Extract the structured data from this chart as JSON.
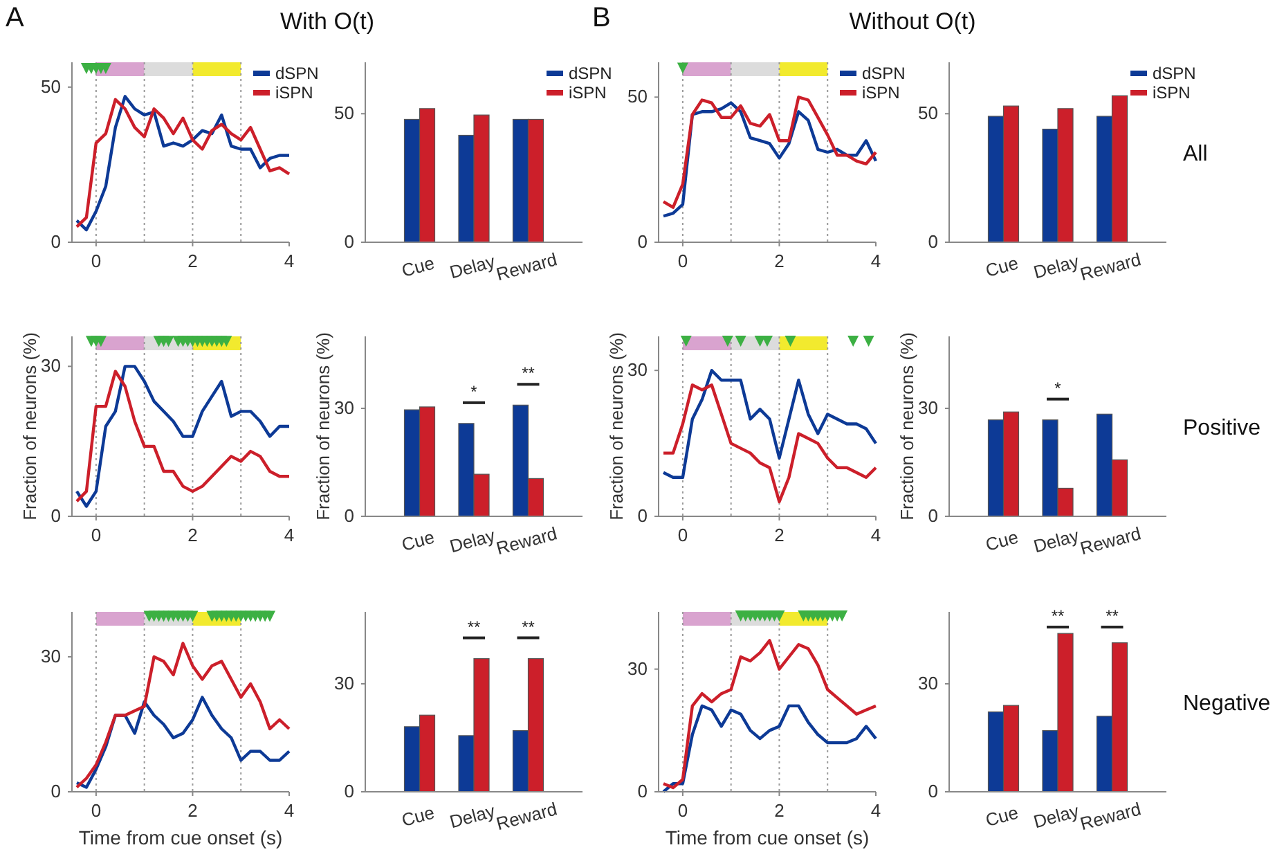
{
  "chart_data": [
    {
      "type": "line",
      "title": "With O(t)",
      "annotations": [
        "A"
      ],
      "x": [
        -0.4,
        -0.2,
        0,
        0.2,
        0.4,
        0.6,
        0.8,
        1.0,
        1.2,
        1.4,
        1.6,
        1.8,
        2.0,
        2.2,
        2.4,
        2.6,
        2.8,
        3.0,
        3.2,
        3.4,
        3.6,
        3.8,
        4.0
      ],
      "xlim": [
        -0.5,
        4
      ],
      "xticks": [
        0,
        2,
        4
      ],
      "ylim": [
        0,
        58
      ],
      "yticks": [
        0,
        50
      ],
      "legend": "top right",
      "bands": [
        {
          "axis": "x",
          "from": 0,
          "to": 1,
          "color": "#d9a3cf"
        },
        {
          "axis": "x",
          "from": 1,
          "to": 2,
          "color": "#dcdcdc"
        },
        {
          "axis": "x",
          "from": 2,
          "to": 3,
          "color": "#f2ea2e"
        }
      ],
      "ref_lines": [
        {
          "axis": "x",
          "value": 0,
          "color": "#9a9a9a",
          "line_style": "dotted"
        },
        {
          "axis": "x",
          "value": 1,
          "color": "#9a9a9a",
          "line_style": "dotted"
        },
        {
          "axis": "x",
          "value": 2,
          "color": "#9a9a9a",
          "line_style": "dotted"
        },
        {
          "axis": "x",
          "value": 3,
          "color": "#9a9a9a",
          "line_style": "dotted"
        }
      ],
      "series": [
        {
          "name": "dSPN",
          "color": "#0d3a96",
          "values": [
            7,
            4,
            10,
            18,
            37,
            47,
            43,
            41,
            42,
            31,
            32,
            31,
            33,
            36,
            35,
            41,
            31,
            30,
            30,
            24,
            27,
            28,
            28
          ]
        },
        {
          "name": "iSPN",
          "color": "#cc1f2a",
          "values": [
            5,
            8,
            32,
            35,
            46,
            43,
            37,
            34,
            43,
            40,
            35,
            40,
            33,
            30,
            36,
            38,
            35,
            33,
            37,
            30,
            23,
            24,
            22
          ]
        },
        {
          "type": "scatter",
          "marker": "triangle",
          "color": "#3cb043",
          "x": [
            -0.2,
            -0.1,
            0,
            0.1,
            0.2
          ],
          "values": [
            56,
            56,
            56,
            56,
            56
          ]
        }
      ]
    },
    {
      "type": "bar",
      "categories": [
        "Cue",
        "Delay",
        "Reward"
      ],
      "ylim": [
        0,
        70
      ],
      "yticks": [
        0,
        50
      ],
      "legend": "top right",
      "series": [
        {
          "name": "dSPN",
          "color": "#0d3a96",
          "values": [
            47.8,
            41.6,
            47.8
          ]
        },
        {
          "name": "iSPN",
          "color": "#cc1f2a",
          "values": [
            52,
            49.5,
            47.8
          ]
        }
      ]
    },
    {
      "type": "line",
      "title": "Without O(t)",
      "annotations": [
        "B"
      ],
      "x": [
        -0.4,
        -0.2,
        0,
        0.2,
        0.4,
        0.6,
        0.8,
        1.0,
        1.2,
        1.4,
        1.6,
        1.8,
        2.0,
        2.2,
        2.4,
        2.6,
        2.8,
        3.0,
        3.2,
        3.4,
        3.6,
        3.8,
        4.0
      ],
      "xlim": [
        -0.5,
        4
      ],
      "xticks": [
        0,
        2,
        4
      ],
      "ylim": [
        0,
        62
      ],
      "yticks": [
        0,
        50
      ],
      "legend": "top right",
      "bands": [
        {
          "axis": "x",
          "from": 0,
          "to": 1,
          "color": "#d9a3cf"
        },
        {
          "axis": "x",
          "from": 1,
          "to": 2,
          "color": "#dcdcdc"
        },
        {
          "axis": "x",
          "from": 2,
          "to": 3,
          "color": "#f2ea2e"
        }
      ],
      "ref_lines": [
        {
          "axis": "x",
          "value": 0,
          "color": "#9a9a9a",
          "line_style": "dotted"
        },
        {
          "axis": "x",
          "value": 1,
          "color": "#9a9a9a",
          "line_style": "dotted"
        },
        {
          "axis": "x",
          "value": 2,
          "color": "#9a9a9a",
          "line_style": "dotted"
        },
        {
          "axis": "x",
          "value": 3,
          "color": "#9a9a9a",
          "line_style": "dotted"
        }
      ],
      "series": [
        {
          "name": "dSPN",
          "color": "#0d3a96",
          "values": [
            9,
            10,
            13,
            44,
            45,
            45,
            46,
            48,
            45,
            36,
            35,
            34,
            29,
            34,
            45,
            42,
            32,
            31,
            32,
            30,
            30,
            35,
            28
          ]
        },
        {
          "name": "iSPN",
          "color": "#cc1f2a",
          "values": [
            14,
            12,
            20,
            44,
            49,
            48,
            43,
            43,
            47,
            41,
            40,
            44,
            35,
            35,
            50,
            49,
            43,
            37,
            30,
            30,
            28,
            27,
            31
          ]
        },
        {
          "type": "scatter",
          "marker": "triangle",
          "color": "#3cb043",
          "x": [
            0
          ],
          "values": [
            60
          ]
        }
      ]
    },
    {
      "type": "bar",
      "categories": [
        "Cue",
        "Delay",
        "Reward"
      ],
      "ylim": [
        0,
        70
      ],
      "yticks": [
        0,
        50
      ],
      "legend": "top right",
      "annotations": [
        "All"
      ],
      "series": [
        {
          "name": "dSPN",
          "color": "#0d3a96",
          "values": [
            49,
            44,
            49
          ]
        },
        {
          "name": "iSPN",
          "color": "#cc1f2a",
          "values": [
            53,
            52,
            57
          ]
        }
      ]
    },
    {
      "type": "line",
      "ylabel": "Fraction of neurons (%)",
      "x": [
        -0.4,
        -0.2,
        0,
        0.2,
        0.4,
        0.6,
        0.8,
        1.0,
        1.2,
        1.4,
        1.6,
        1.8,
        2.0,
        2.2,
        2.4,
        2.6,
        2.8,
        3.0,
        3.2,
        3.4,
        3.6,
        3.8,
        4.0
      ],
      "xlim": [
        -0.5,
        4
      ],
      "xticks": [
        0,
        2,
        4
      ],
      "ylim": [
        0,
        36
      ],
      "yticks": [
        0,
        30
      ],
      "bands": [
        {
          "axis": "x",
          "from": 0,
          "to": 1,
          "color": "#d9a3cf"
        },
        {
          "axis": "x",
          "from": 1,
          "to": 2,
          "color": "#dcdcdc"
        },
        {
          "axis": "x",
          "from": 2,
          "to": 3,
          "color": "#f2ea2e"
        }
      ],
      "ref_lines": [
        {
          "axis": "x",
          "value": 0,
          "color": "#9a9a9a",
          "line_style": "dotted"
        },
        {
          "axis": "x",
          "value": 1,
          "color": "#9a9a9a",
          "line_style": "dotted"
        },
        {
          "axis": "x",
          "value": 2,
          "color": "#9a9a9a",
          "line_style": "dotted"
        },
        {
          "axis": "x",
          "value": 3,
          "color": "#9a9a9a",
          "line_style": "dotted"
        }
      ],
      "series": [
        {
          "color": "#0d3a96",
          "values": [
            5,
            2,
            5,
            18,
            21,
            30,
            30,
            27,
            23,
            21,
            19,
            16,
            16,
            21,
            24,
            27,
            20,
            21,
            21,
            19,
            16,
            18,
            18
          ]
        },
        {
          "color": "#cc1f2a",
          "values": [
            3,
            5,
            22,
            22,
            29,
            26,
            19,
            14,
            14,
            9,
            9,
            6,
            5,
            6,
            8,
            10,
            12,
            11,
            13,
            12,
            9,
            8,
            8
          ]
        },
        {
          "type": "scatter",
          "marker": "triangle",
          "color": "#3cb043",
          "x": [
            -0.1,
            0,
            0.1,
            1.3,
            1.4,
            1.5,
            1.7,
            1.8,
            1.9,
            2.0,
            2.1,
            2.2,
            2.3,
            2.4,
            2.5,
            2.6,
            2.7
          ],
          "values": [
            35,
            35,
            35,
            35,
            35,
            35,
            35,
            35,
            35,
            35,
            35,
            35,
            35,
            35,
            35,
            35,
            35
          ]
        }
      ]
    },
    {
      "type": "bar",
      "ylabel": "Fraction of neurons (%)",
      "categories": [
        "Cue",
        "Delay",
        "Reward"
      ],
      "ylim": [
        0,
        50
      ],
      "yticks": [
        0,
        30
      ],
      "annotations": [
        "*",
        "**"
      ],
      "series": [
        {
          "color": "#0d3a96",
          "values": [
            29.6,
            25.8,
            30.9
          ]
        },
        {
          "color": "#cc1f2a",
          "values": [
            30.4,
            11.7,
            10.5
          ]
        }
      ]
    },
    {
      "type": "line",
      "ylabel": "Fraction of neurons (%)",
      "x": [
        -0.4,
        -0.2,
        0,
        0.2,
        0.4,
        0.6,
        0.8,
        1.0,
        1.2,
        1.4,
        1.6,
        1.8,
        2.0,
        2.2,
        2.4,
        2.6,
        2.8,
        3.0,
        3.2,
        3.4,
        3.6,
        3.8,
        4.0
      ],
      "xlim": [
        -0.5,
        4
      ],
      "xticks": [
        0,
        2,
        4
      ],
      "ylim": [
        0,
        37
      ],
      "yticks": [
        0,
        30
      ],
      "bands": [
        {
          "axis": "x",
          "from": 0,
          "to": 1,
          "color": "#d9a3cf"
        },
        {
          "axis": "x",
          "from": 1,
          "to": 2,
          "color": "#dcdcdc"
        },
        {
          "axis": "x",
          "from": 2,
          "to": 3,
          "color": "#f2ea2e"
        }
      ],
      "ref_lines": [
        {
          "axis": "x",
          "value": 0,
          "color": "#9a9a9a",
          "line_style": "dotted"
        },
        {
          "axis": "x",
          "value": 1,
          "color": "#9a9a9a",
          "line_style": "dotted"
        },
        {
          "axis": "x",
          "value": 2,
          "color": "#9a9a9a",
          "line_style": "dotted"
        },
        {
          "axis": "x",
          "value": 3,
          "color": "#9a9a9a",
          "line_style": "dotted"
        }
      ],
      "series": [
        {
          "color": "#0d3a96",
          "values": [
            9,
            8,
            8,
            20,
            24,
            30,
            28,
            28,
            28,
            20,
            22,
            20,
            12,
            20,
            28,
            21,
            17,
            21,
            20,
            19,
            19,
            18,
            15
          ]
        },
        {
          "color": "#cc1f2a",
          "values": [
            13,
            13,
            19,
            27,
            26,
            27,
            21,
            15,
            14,
            13,
            11,
            10,
            3,
            8,
            17,
            16,
            15,
            12,
            10,
            10,
            9,
            8,
            10
          ]
        },
        {
          "type": "scatter",
          "marker": "triangle",
          "color": "#3cb043",
          "x": [
            0.07,
            0.93,
            1.2,
            1.6,
            1.75,
            2.23,
            3.53,
            3.85
          ],
          "values": [
            36,
            36,
            36,
            36,
            36,
            36,
            36,
            36
          ]
        }
      ]
    },
    {
      "type": "bar",
      "ylabel": "Fraction of neurons (%)",
      "categories": [
        "Cue",
        "Delay",
        "Reward"
      ],
      "ylim": [
        0,
        50
      ],
      "yticks": [
        0,
        30
      ],
      "annotations": [
        "Positive",
        "*"
      ],
      "series": [
        {
          "color": "#0d3a96",
          "values": [
            26.8,
            26.8,
            28.4
          ]
        },
        {
          "color": "#cc1f2a",
          "values": [
            29,
            7.8,
            15.7
          ]
        }
      ]
    },
    {
      "type": "line",
      "xlabel": "Time from cue onset (s)",
      "x": [
        -0.4,
        -0.2,
        0,
        0.2,
        0.4,
        0.6,
        0.8,
        1.0,
        1.2,
        1.4,
        1.6,
        1.8,
        2.0,
        2.2,
        2.4,
        2.6,
        2.8,
        3.0,
        3.2,
        3.4,
        3.6,
        3.8,
        4.0
      ],
      "xlim": [
        -0.5,
        4
      ],
      "xticks": [
        0,
        2,
        4
      ],
      "ylim": [
        0,
        40
      ],
      "yticks": [
        0,
        30
      ],
      "bands": [
        {
          "axis": "x",
          "from": 0,
          "to": 1,
          "color": "#d9a3cf"
        },
        {
          "axis": "x",
          "from": 1,
          "to": 2,
          "color": "#dcdcdc"
        },
        {
          "axis": "x",
          "from": 2,
          "to": 3,
          "color": "#f2ea2e"
        }
      ],
      "ref_lines": [
        {
          "axis": "x",
          "value": 0,
          "color": "#9a9a9a",
          "line_style": "dotted"
        },
        {
          "axis": "x",
          "value": 1,
          "color": "#9a9a9a",
          "line_style": "dotted"
        },
        {
          "axis": "x",
          "value": 2,
          "color": "#9a9a9a",
          "line_style": "dotted"
        },
        {
          "axis": "x",
          "value": 3,
          "color": "#9a9a9a",
          "line_style": "dotted"
        }
      ],
      "series": [
        {
          "color": "#0d3a96",
          "values": [
            2,
            1,
            5,
            10,
            17,
            17,
            13,
            20,
            17,
            15,
            12,
            13,
            16,
            21,
            17,
            14,
            12,
            7,
            9,
            9,
            7,
            7,
            9
          ]
        },
        {
          "color": "#cc1f2a",
          "values": [
            1,
            3,
            6,
            11,
            17,
            17,
            18,
            19,
            30,
            29,
            26,
            33,
            28,
            25,
            28,
            29,
            25,
            21,
            24,
            20,
            14,
            16,
            14
          ]
        },
        {
          "type": "scatter",
          "marker": "triangle",
          "color": "#3cb043",
          "x": [
            1.1,
            1.2,
            1.3,
            1.4,
            1.5,
            1.6,
            1.7,
            1.8,
            1.9,
            2.0,
            2.4,
            2.5,
            2.6,
            2.7,
            2.8,
            2.9,
            3.0,
            3.1,
            3.2,
            3.3,
            3.4,
            3.5,
            3.6
          ],
          "values": [
            39,
            39,
            39,
            39,
            39,
            39,
            39,
            39,
            39,
            39,
            39,
            39,
            39,
            39,
            39,
            39,
            39,
            39,
            39,
            39,
            39,
            39,
            39
          ]
        }
      ]
    },
    {
      "type": "bar",
      "categories": [
        "Cue",
        "Delay",
        "Reward"
      ],
      "ylim": [
        0,
        50
      ],
      "yticks": [
        0,
        30
      ],
      "annotations": [
        "**",
        "**"
      ],
      "series": [
        {
          "color": "#0d3a96",
          "values": [
            18.1,
            15.6,
            17
          ]
        },
        {
          "color": "#cc1f2a",
          "values": [
            21.3,
            37,
            37
          ]
        }
      ]
    },
    {
      "type": "line",
      "xlabel": "Time from cue onset (s)",
      "x": [
        -0.4,
        -0.2,
        0,
        0.2,
        0.4,
        0.6,
        0.8,
        1.0,
        1.2,
        1.4,
        1.6,
        1.8,
        2.0,
        2.2,
        2.4,
        2.6,
        2.8,
        3.0,
        3.2,
        3.4,
        3.6,
        3.8,
        4.0
      ],
      "xlim": [
        -0.5,
        4
      ],
      "xticks": [
        0,
        2,
        4
      ],
      "ylim": [
        0,
        44
      ],
      "yticks": [
        0,
        30
      ],
      "bands": [
        {
          "axis": "x",
          "from": 0,
          "to": 1,
          "color": "#d9a3cf"
        },
        {
          "axis": "x",
          "from": 1,
          "to": 2,
          "color": "#dcdcdc"
        },
        {
          "axis": "x",
          "from": 2,
          "to": 3,
          "color": "#f2ea2e"
        }
      ],
      "ref_lines": [
        {
          "axis": "x",
          "value": 0,
          "color": "#9a9a9a",
          "line_style": "dotted"
        },
        {
          "axis": "x",
          "value": 1,
          "color": "#9a9a9a",
          "line_style": "dotted"
        },
        {
          "axis": "x",
          "value": 2,
          "color": "#9a9a9a",
          "line_style": "dotted"
        },
        {
          "axis": "x",
          "value": 3,
          "color": "#9a9a9a",
          "line_style": "dotted"
        }
      ],
      "series": [
        {
          "color": "#0d3a96",
          "values": [
            0,
            2,
            2,
            14,
            21,
            20,
            16,
            20,
            19,
            15,
            13,
            15,
            16,
            21,
            21,
            17,
            14,
            12,
            12,
            12,
            13,
            16,
            13
          ]
        },
        {
          "color": "#cc1f2a",
          "values": [
            2,
            1,
            3,
            21,
            24,
            22,
            24,
            25,
            33,
            32,
            34,
            37,
            30,
            33,
            36,
            35,
            31,
            25,
            23,
            21,
            19,
            20,
            21
          ]
        },
        {
          "type": "scatter",
          "marker": "triangle",
          "color": "#3cb043",
          "x": [
            1.2,
            1.3,
            1.4,
            1.5,
            1.6,
            1.7,
            1.8,
            1.9,
            2.0,
            2.5,
            2.6,
            2.7,
            2.8,
            2.9,
            3.0,
            3.1,
            3.2,
            3.3
          ],
          "values": [
            43,
            43,
            43,
            43,
            43,
            43,
            43,
            43,
            43,
            43,
            43,
            43,
            43,
            43,
            43,
            43,
            43,
            43
          ]
        }
      ]
    },
    {
      "type": "bar",
      "categories": [
        "Cue",
        "Delay",
        "Reward"
      ],
      "ylim": [
        0,
        50
      ],
      "yticks": [
        0,
        30
      ],
      "annotations": [
        "Negative",
        "**",
        "**"
      ],
      "series": [
        {
          "color": "#0d3a96",
          "values": [
            22.2,
            17,
            21
          ]
        },
        {
          "color": "#cc1f2a",
          "values": [
            24,
            44,
            41.4
          ]
        }
      ]
    }
  ]
}
